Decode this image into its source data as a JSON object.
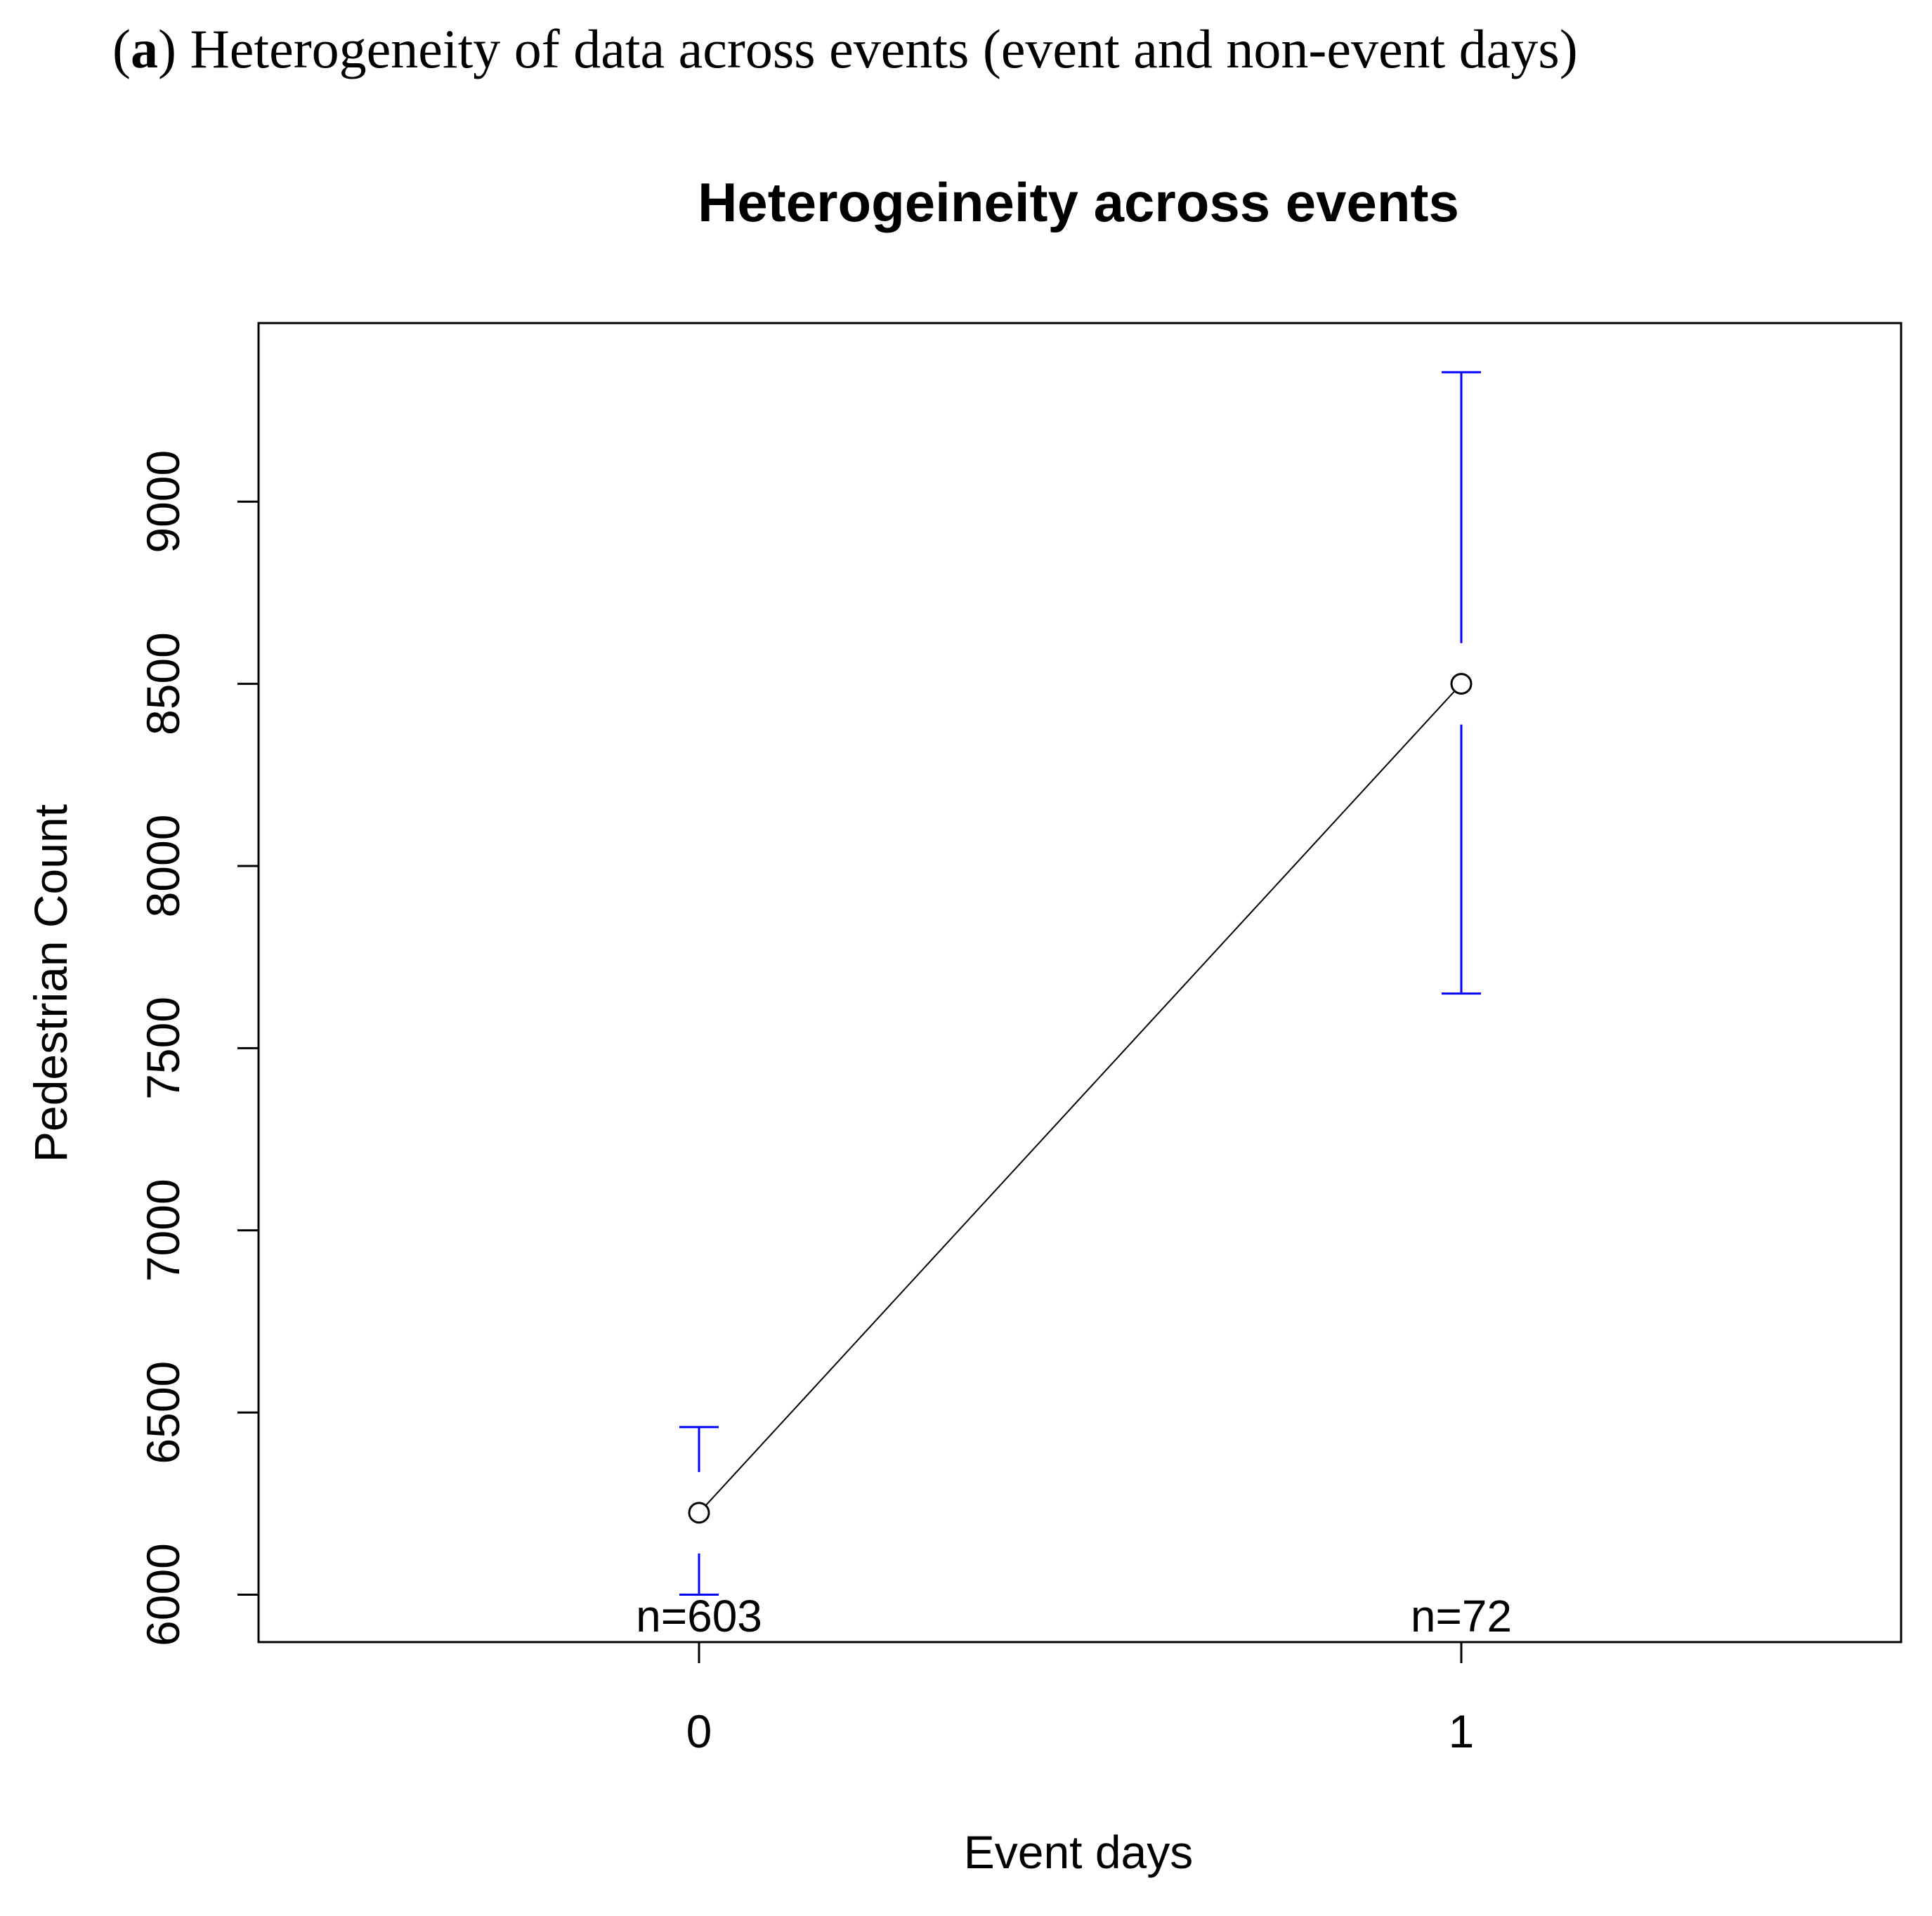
{
  "caption": {
    "label": "a",
    "text": "Heterogeneity of data across events (event and non-event days)"
  },
  "chart_data": {
    "type": "line",
    "title": "Heterogeineity across events",
    "xlabel": "Event days",
    "ylabel": "Pedestrian Count",
    "categories": [
      "0",
      "1"
    ],
    "means": [
      6225,
      8500
    ],
    "error_low": [
      6000,
      7650
    ],
    "error_high": [
      6460,
      9355
    ],
    "n_labels": [
      "n=603",
      "n=72"
    ],
    "ylim": [
      5870,
      9490
    ],
    "yticks": [
      6000,
      6500,
      7000,
      7500,
      8000,
      8500,
      9000
    ],
    "error_bar_color": "#0000ff",
    "line_color": "#000000"
  }
}
